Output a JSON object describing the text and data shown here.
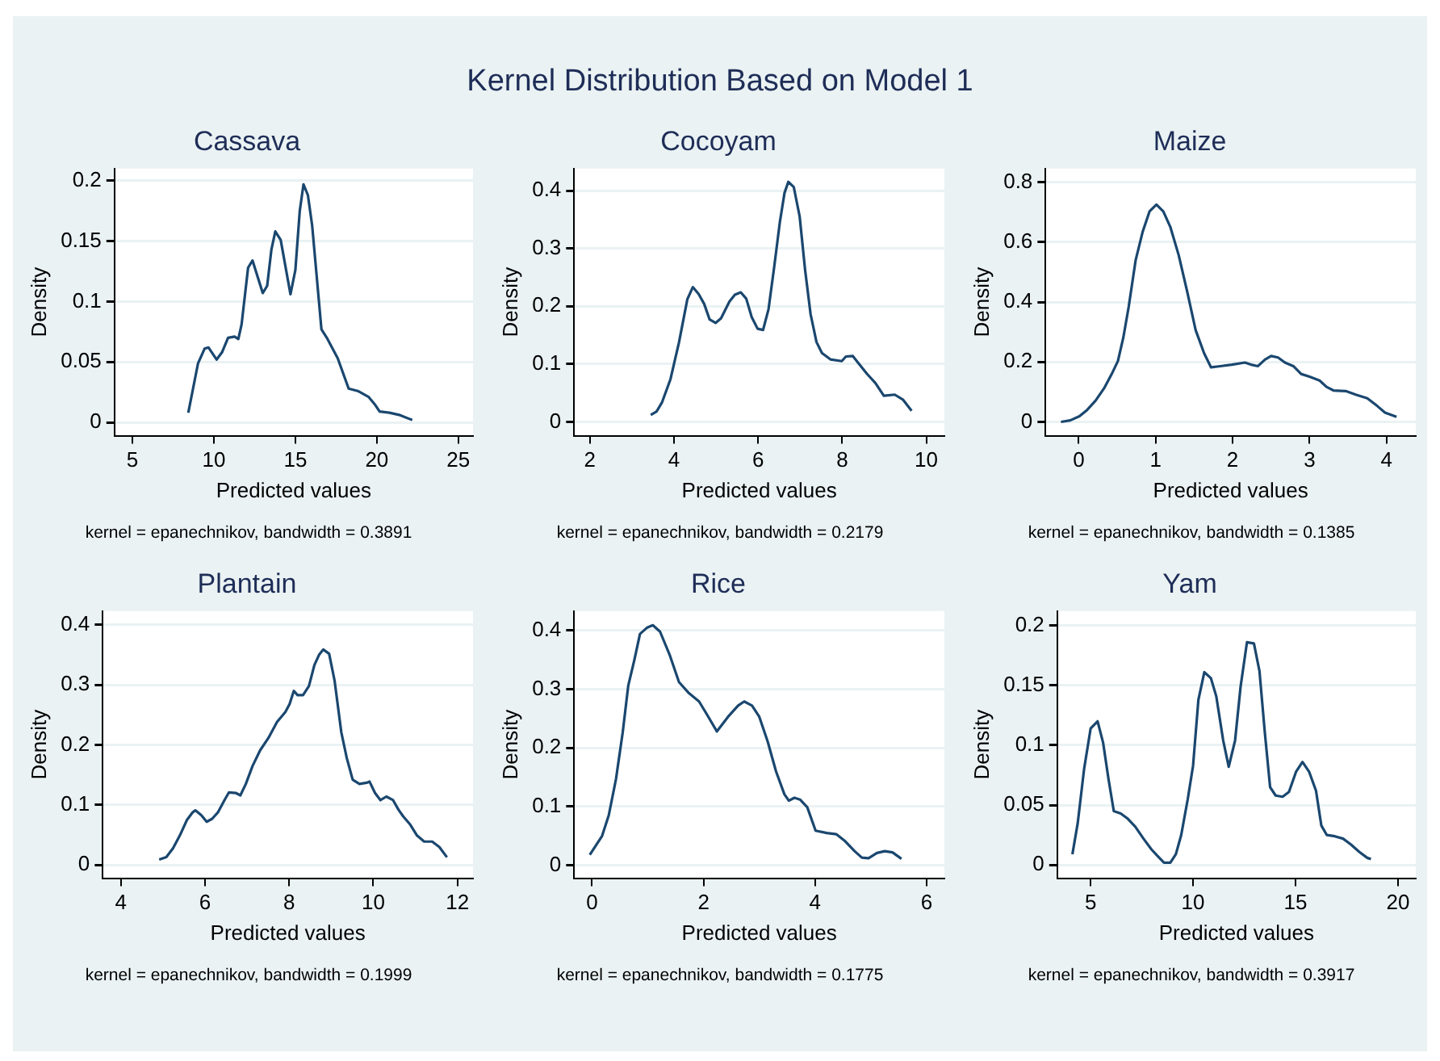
{
  "chart_data": [
    {
      "type": "other",
      "title": "Kernel Distribution Based on Model 1"
    },
    {
      "type": "line",
      "title": "Cassava",
      "xlabel": "Predicted values",
      "ylabel": "Density",
      "annotations": [
        "kernel = epanechnikov, bandwidth = 0.3891"
      ],
      "color": "#1a476f",
      "grid": "y",
      "xlim": [
        3.9,
        25.9
      ],
      "xticks": [
        5,
        10,
        15,
        20,
        25
      ],
      "ylim": [
        -0.011,
        0.21
      ],
      "yticks": [
        0,
        0.05,
        0.1,
        0.15,
        0.2
      ],
      "x": [
        8.43,
        9.03,
        9.43,
        9.67,
        10.17,
        10.5,
        10.87,
        11.27,
        11.5,
        11.7,
        12.1,
        12.37,
        13.0,
        13.27,
        13.53,
        13.77,
        14.1,
        14.7,
        15.0,
        15.27,
        15.5,
        15.77,
        16.03,
        16.6,
        16.93,
        17.6,
        18.27,
        18.83,
        19.5,
        19.87,
        20.17,
        20.77,
        21.43,
        22.17
      ],
      "values": [
        0.008,
        0.049,
        0.061,
        0.062,
        0.052,
        0.058,
        0.07,
        0.071,
        0.069,
        0.081,
        0.128,
        0.134,
        0.107,
        0.113,
        0.143,
        0.158,
        0.151,
        0.106,
        0.126,
        0.175,
        0.197,
        0.188,
        0.163,
        0.077,
        0.07,
        0.053,
        0.028,
        0.026,
        0.021,
        0.015,
        0.009,
        0.008,
        0.006,
        0.002
      ]
    },
    {
      "type": "line",
      "title": "Cocoyam",
      "xlabel": "Predicted values",
      "ylabel": "Density",
      "annotations": [
        "kernel = epanechnikov, bandwidth = 0.2179"
      ],
      "color": "#1a476f",
      "grid": "y",
      "xlim": [
        1.63,
        10.43
      ],
      "xticks": [
        2,
        4,
        6,
        8,
        10
      ],
      "ylim": [
        -0.024,
        0.438
      ],
      "yticks": [
        0,
        0.1,
        0.2,
        0.3,
        0.4
      ],
      "x": [
        3.45,
        3.59,
        3.72,
        3.92,
        4.12,
        4.32,
        4.45,
        4.59,
        4.72,
        4.85,
        4.99,
        5.12,
        5.32,
        5.45,
        5.59,
        5.72,
        5.85,
        5.99,
        6.12,
        6.25,
        6.39,
        6.52,
        6.63,
        6.72,
        6.85,
        6.99,
        7.12,
        7.25,
        7.39,
        7.52,
        7.72,
        7.99,
        8.09,
        8.25,
        8.39,
        8.59,
        8.79,
        8.99,
        9.25,
        9.45,
        9.65
      ],
      "values": [
        0.012,
        0.018,
        0.034,
        0.074,
        0.137,
        0.212,
        0.233,
        0.221,
        0.204,
        0.177,
        0.171,
        0.179,
        0.208,
        0.22,
        0.224,
        0.213,
        0.181,
        0.161,
        0.159,
        0.195,
        0.271,
        0.346,
        0.396,
        0.415,
        0.406,
        0.355,
        0.262,
        0.186,
        0.138,
        0.119,
        0.108,
        0.105,
        0.113,
        0.114,
        0.101,
        0.083,
        0.067,
        0.045,
        0.047,
        0.038,
        0.019
      ]
    },
    {
      "type": "line",
      "title": "Maize",
      "xlabel": "Predicted values",
      "ylabel": "Density",
      "annotations": [
        "kernel = epanechnikov, bandwidth = 0.1385"
      ],
      "color": "#1a476f",
      "grid": "y",
      "xlim": [
        -0.43,
        4.38
      ],
      "xticks": [
        0,
        1,
        2,
        3,
        4
      ],
      "ylim": [
        -0.046,
        0.845
      ],
      "yticks": [
        0,
        0.2,
        0.4,
        0.6,
        0.8
      ],
      "x": [
        -0.23,
        -0.11,
        0.01,
        0.11,
        0.22,
        0.33,
        0.43,
        0.51,
        0.58,
        0.65,
        0.74,
        0.83,
        0.92,
        1.01,
        1.1,
        1.19,
        1.3,
        1.41,
        1.52,
        1.63,
        1.72,
        1.84,
        1.99,
        2.16,
        2.24,
        2.33,
        2.42,
        2.5,
        2.59,
        2.68,
        2.79,
        2.89,
        3.0,
        3.13,
        3.22,
        3.31,
        3.47,
        3.6,
        3.75,
        3.88,
        3.98,
        4.13
      ],
      "values": [
        0.0,
        0.005,
        0.019,
        0.04,
        0.071,
        0.112,
        0.16,
        0.203,
        0.281,
        0.384,
        0.539,
        0.633,
        0.702,
        0.725,
        0.702,
        0.651,
        0.556,
        0.435,
        0.306,
        0.229,
        0.182,
        0.186,
        0.191,
        0.198,
        0.191,
        0.186,
        0.208,
        0.22,
        0.215,
        0.198,
        0.186,
        0.16,
        0.151,
        0.138,
        0.117,
        0.105,
        0.103,
        0.091,
        0.079,
        0.053,
        0.031,
        0.017
      ]
    },
    {
      "type": "line",
      "title": "Plantain",
      "xlabel": "Predicted values",
      "ylabel": "Density",
      "annotations": [
        "kernel = epanechnikov, bandwidth = 0.1999"
      ],
      "color": "#1a476f",
      "grid": "y",
      "xlim": [
        3.57,
        12.37
      ],
      "xticks": [
        4,
        6,
        8,
        10,
        12
      ],
      "ylim": [
        -0.022,
        0.423
      ],
      "yticks": [
        0,
        0.1,
        0.2,
        0.3,
        0.4
      ],
      "x": [
        4.91,
        5.08,
        5.24,
        5.4,
        5.57,
        5.71,
        5.77,
        5.91,
        6.04,
        6.17,
        6.31,
        6.47,
        6.57,
        6.73,
        6.84,
        6.97,
        7.13,
        7.31,
        7.51,
        7.71,
        7.91,
        8.01,
        8.11,
        8.2,
        8.33,
        8.47,
        8.6,
        8.71,
        8.81,
        8.95,
        9.08,
        9.24,
        9.37,
        9.51,
        9.67,
        9.84,
        9.91,
        10.04,
        10.17,
        10.31,
        10.47,
        10.6,
        10.71,
        10.87,
        11.04,
        11.21,
        11.4,
        11.57,
        11.75
      ],
      "values": [
        0.009,
        0.013,
        0.028,
        0.049,
        0.075,
        0.088,
        0.091,
        0.083,
        0.072,
        0.077,
        0.088,
        0.109,
        0.121,
        0.12,
        0.116,
        0.135,
        0.165,
        0.191,
        0.212,
        0.238,
        0.255,
        0.268,
        0.29,
        0.283,
        0.283,
        0.298,
        0.333,
        0.35,
        0.359,
        0.352,
        0.307,
        0.221,
        0.178,
        0.142,
        0.135,
        0.137,
        0.139,
        0.12,
        0.108,
        0.114,
        0.108,
        0.092,
        0.081,
        0.068,
        0.049,
        0.039,
        0.039,
        0.03,
        0.013
      ]
    },
    {
      "type": "line",
      "title": "Rice",
      "xlabel": "Predicted values",
      "ylabel": "Density",
      "annotations": [
        "kernel = epanechnikov, bandwidth = 0.1775"
      ],
      "color": "#1a476f",
      "grid": "y",
      "xlim": [
        -0.32,
        6.32
      ],
      "xticks": [
        0,
        2,
        4,
        6
      ],
      "ylim": [
        -0.022,
        0.433
      ],
      "yticks": [
        0,
        0.1,
        0.2,
        0.3,
        0.4
      ],
      "x": [
        -0.04,
        0.18,
        0.3,
        0.43,
        0.55,
        0.65,
        0.76,
        0.86,
        0.99,
        1.09,
        1.22,
        1.39,
        1.56,
        1.74,
        1.92,
        2.06,
        2.24,
        2.44,
        2.62,
        2.73,
        2.87,
        3.0,
        3.15,
        3.3,
        3.45,
        3.53,
        3.63,
        3.73,
        3.86,
        4.01,
        4.21,
        4.38,
        4.54,
        4.71,
        4.84,
        4.96,
        5.11,
        5.25,
        5.39,
        5.55
      ],
      "values": [
        0.018,
        0.05,
        0.085,
        0.147,
        0.226,
        0.306,
        0.35,
        0.394,
        0.405,
        0.409,
        0.398,
        0.359,
        0.312,
        0.293,
        0.279,
        0.257,
        0.228,
        0.253,
        0.272,
        0.279,
        0.272,
        0.253,
        0.211,
        0.16,
        0.121,
        0.11,
        0.115,
        0.112,
        0.099,
        0.059,
        0.055,
        0.053,
        0.041,
        0.024,
        0.013,
        0.012,
        0.021,
        0.024,
        0.022,
        0.011
      ]
    },
    {
      "type": "line",
      "title": "Yam",
      "xlabel": "Predicted values",
      "ylabel": "Density",
      "annotations": [
        "kernel = epanechnikov, bandwidth = 0.3917"
      ],
      "color": "#1a476f",
      "grid": "y",
      "xlim": [
        3.37,
        20.87
      ],
      "xticks": [
        5,
        10,
        15,
        20
      ],
      "ylim": [
        -0.011,
        0.212
      ],
      "yticks": [
        0,
        0.05,
        0.1,
        0.15,
        0.2
      ],
      "x": [
        4.11,
        4.37,
        4.68,
        5.0,
        5.34,
        5.61,
        5.87,
        6.13,
        6.47,
        6.79,
        7.18,
        7.58,
        7.97,
        8.24,
        8.58,
        8.89,
        9.16,
        9.42,
        9.74,
        10.0,
        10.26,
        10.55,
        10.87,
        11.13,
        11.47,
        11.74,
        12.05,
        12.32,
        12.63,
        12.97,
        13.24,
        13.5,
        13.76,
        14.03,
        14.37,
        14.68,
        15.03,
        15.34,
        15.66,
        16.0,
        16.26,
        16.53,
        16.92,
        17.32,
        17.71,
        18.11,
        18.5,
        18.68
      ],
      "values": [
        0.009,
        0.035,
        0.08,
        0.114,
        0.12,
        0.102,
        0.072,
        0.045,
        0.043,
        0.039,
        0.032,
        0.022,
        0.013,
        0.008,
        0.002,
        0.002,
        0.009,
        0.025,
        0.055,
        0.083,
        0.138,
        0.161,
        0.156,
        0.141,
        0.104,
        0.082,
        0.104,
        0.149,
        0.186,
        0.185,
        0.162,
        0.111,
        0.065,
        0.058,
        0.057,
        0.061,
        0.078,
        0.086,
        0.078,
        0.062,
        0.033,
        0.025,
        0.024,
        0.022,
        0.017,
        0.011,
        0.006,
        0.005
      ]
    }
  ]
}
